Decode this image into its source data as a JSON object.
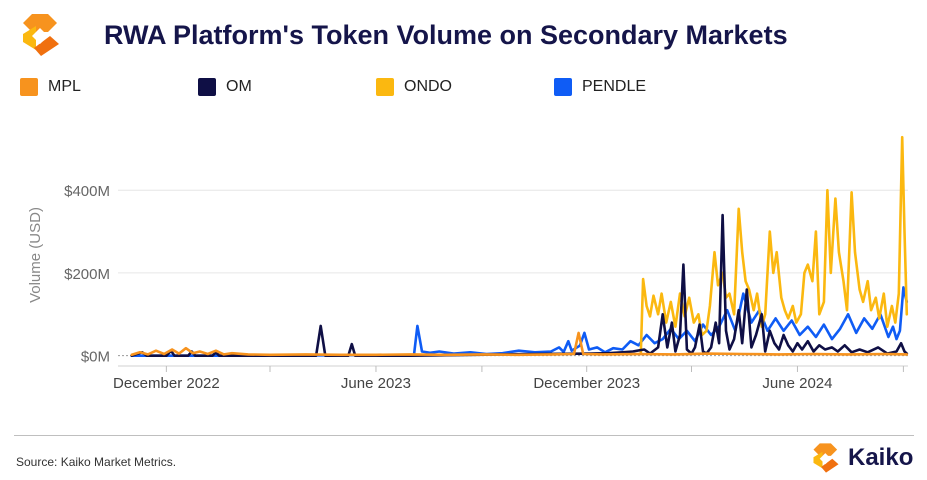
{
  "title": "RWA Platform's Token Volume on Secondary Markets",
  "source": "Source: Kaiko Market Metrics.",
  "brand": "Kaiko",
  "legend": [
    {
      "name": "MPL",
      "color": "#f7931e"
    },
    {
      "name": "OM",
      "color": "#0f0f45"
    },
    {
      "name": "ONDO",
      "color": "#fbb810"
    },
    {
      "name": "PENDLE",
      "color": "#0f5cf5"
    }
  ],
  "chart_data": {
    "type": "line",
    "ylabel": "Volume (USD)",
    "y_unit": "USD millions",
    "ylim": [
      -25,
      560
    ],
    "y_ticks": [
      0,
      200,
      400
    ],
    "y_tick_labels": [
      "$0M",
      "$200M",
      "$400M"
    ],
    "x_range": [
      "2022-10-20",
      "2024-09-05"
    ],
    "x_ticks": [
      "2022-12-01",
      "2023-06-01",
      "2023-12-01",
      "2024-06-01"
    ],
    "x_tick_labels": [
      "December 2022",
      "June 2023",
      "December 2023",
      "June 2024"
    ],
    "grid": "horizontal",
    "legend_position": "top",
    "series": [
      {
        "name": "PENDLE",
        "color": "#0f5cf5",
        "points": [
          [
            "2022-11-01",
            0
          ],
          [
            "2023-03-01",
            0
          ],
          [
            "2023-06-25",
            2
          ],
          [
            "2023-07-04",
            2
          ],
          [
            "2023-07-07",
            72
          ],
          [
            "2023-07-11",
            10
          ],
          [
            "2023-07-18",
            7
          ],
          [
            "2023-07-26",
            10
          ],
          [
            "2023-08-08",
            5
          ],
          [
            "2023-08-22",
            8
          ],
          [
            "2023-09-05",
            4
          ],
          [
            "2023-09-19",
            6
          ],
          [
            "2023-10-03",
            12
          ],
          [
            "2023-10-17",
            8
          ],
          [
            "2023-10-31",
            10
          ],
          [
            "2023-11-07",
            20
          ],
          [
            "2023-11-11",
            9
          ],
          [
            "2023-11-15",
            35
          ],
          [
            "2023-11-18",
            12
          ],
          [
            "2023-11-25",
            24
          ],
          [
            "2023-11-29",
            55
          ],
          [
            "2023-12-03",
            15
          ],
          [
            "2023-12-10",
            20
          ],
          [
            "2023-12-17",
            8
          ],
          [
            "2023-12-24",
            18
          ],
          [
            "2024-01-01",
            15
          ],
          [
            "2024-01-08",
            35
          ],
          [
            "2024-01-15",
            25
          ],
          [
            "2024-01-22",
            50
          ],
          [
            "2024-01-29",
            30
          ],
          [
            "2024-02-05",
            40
          ],
          [
            "2024-02-12",
            65
          ],
          [
            "2024-02-19",
            40
          ],
          [
            "2024-02-26",
            60
          ],
          [
            "2024-03-04",
            35
          ],
          [
            "2024-03-11",
            75
          ],
          [
            "2024-03-18",
            50
          ],
          [
            "2024-03-25",
            70
          ],
          [
            "2024-04-01",
            110
          ],
          [
            "2024-04-08",
            60
          ],
          [
            "2024-04-15",
            150
          ],
          [
            "2024-04-22",
            80
          ],
          [
            "2024-04-29",
            110
          ],
          [
            "2024-05-06",
            60
          ],
          [
            "2024-05-13",
            90
          ],
          [
            "2024-05-20",
            60
          ],
          [
            "2024-05-27",
            85
          ],
          [
            "2024-06-03",
            50
          ],
          [
            "2024-06-10",
            70
          ],
          [
            "2024-06-17",
            45
          ],
          [
            "2024-06-24",
            75
          ],
          [
            "2024-07-01",
            40
          ],
          [
            "2024-07-08",
            65
          ],
          [
            "2024-07-15",
            100
          ],
          [
            "2024-07-22",
            55
          ],
          [
            "2024-07-29",
            90
          ],
          [
            "2024-08-05",
            65
          ],
          [
            "2024-08-12",
            100
          ],
          [
            "2024-08-19",
            45
          ],
          [
            "2024-08-23",
            70
          ],
          [
            "2024-08-26",
            40
          ],
          [
            "2024-08-29",
            60
          ],
          [
            "2024-09-01",
            165
          ],
          [
            "2024-09-04",
            130
          ]
        ]
      },
      {
        "name": "ONDO",
        "color": "#fbb810",
        "points": [
          [
            "2024-01-17",
            5
          ],
          [
            "2024-01-19",
            185
          ],
          [
            "2024-01-22",
            120
          ],
          [
            "2024-01-25",
            95
          ],
          [
            "2024-01-28",
            145
          ],
          [
            "2024-02-01",
            100
          ],
          [
            "2024-02-04",
            150
          ],
          [
            "2024-02-08",
            80
          ],
          [
            "2024-02-12",
            130
          ],
          [
            "2024-02-16",
            70
          ],
          [
            "2024-02-20",
            150
          ],
          [
            "2024-02-24",
            95
          ],
          [
            "2024-02-28",
            140
          ],
          [
            "2024-03-03",
            80
          ],
          [
            "2024-03-07",
            100
          ],
          [
            "2024-03-10",
            50
          ],
          [
            "2024-03-14",
            60
          ],
          [
            "2024-03-17",
            120
          ],
          [
            "2024-03-21",
            250
          ],
          [
            "2024-03-24",
            170
          ],
          [
            "2024-03-28",
            200
          ],
          [
            "2024-03-31",
            140
          ],
          [
            "2024-04-03",
            150
          ],
          [
            "2024-04-07",
            100
          ],
          [
            "2024-04-11",
            355
          ],
          [
            "2024-04-14",
            250
          ],
          [
            "2024-04-17",
            180
          ],
          [
            "2024-04-20",
            160
          ],
          [
            "2024-04-24",
            110
          ],
          [
            "2024-04-27",
            150
          ],
          [
            "2024-05-01",
            70
          ],
          [
            "2024-05-04",
            100
          ],
          [
            "2024-05-08",
            300
          ],
          [
            "2024-05-11",
            200
          ],
          [
            "2024-05-14",
            250
          ],
          [
            "2024-05-18",
            140
          ],
          [
            "2024-05-21",
            110
          ],
          [
            "2024-05-24",
            90
          ],
          [
            "2024-05-28",
            120
          ],
          [
            "2024-05-31",
            80
          ],
          [
            "2024-06-04",
            100
          ],
          [
            "2024-06-07",
            200
          ],
          [
            "2024-06-10",
            220
          ],
          [
            "2024-06-14",
            180
          ],
          [
            "2024-06-17",
            300
          ],
          [
            "2024-06-20",
            100
          ],
          [
            "2024-06-24",
            130
          ],
          [
            "2024-06-27",
            400
          ],
          [
            "2024-06-30",
            200
          ],
          [
            "2024-07-04",
            380
          ],
          [
            "2024-07-07",
            250
          ],
          [
            "2024-07-11",
            180
          ],
          [
            "2024-07-14",
            110
          ],
          [
            "2024-07-18",
            395
          ],
          [
            "2024-07-21",
            250
          ],
          [
            "2024-07-25",
            160
          ],
          [
            "2024-07-28",
            130
          ],
          [
            "2024-08-01",
            180
          ],
          [
            "2024-08-04",
            110
          ],
          [
            "2024-08-08",
            140
          ],
          [
            "2024-08-11",
            90
          ],
          [
            "2024-08-15",
            150
          ],
          [
            "2024-08-18",
            70
          ],
          [
            "2024-08-22",
            120
          ],
          [
            "2024-08-25",
            80
          ],
          [
            "2024-08-28",
            150
          ],
          [
            "2024-08-31",
            528
          ],
          [
            "2024-09-02",
            300
          ],
          [
            "2024-09-04",
            100
          ]
        ]
      },
      {
        "name": "OM",
        "color": "#0f0f45",
        "points": [
          [
            "2022-11-01",
            0
          ],
          [
            "2022-11-10",
            8
          ],
          [
            "2022-11-14",
            0
          ],
          [
            "2022-12-01",
            0
          ],
          [
            "2022-12-05",
            12
          ],
          [
            "2022-12-08",
            0
          ],
          [
            "2022-12-20",
            0
          ],
          [
            "2022-12-23",
            10
          ],
          [
            "2022-12-26",
            0
          ],
          [
            "2023-01-10",
            0
          ],
          [
            "2023-01-13",
            8
          ],
          [
            "2023-01-16",
            0
          ],
          [
            "2023-04-10",
            0
          ],
          [
            "2023-04-14",
            72
          ],
          [
            "2023-04-18",
            0
          ],
          [
            "2023-05-08",
            0
          ],
          [
            "2023-05-11",
            28
          ],
          [
            "2023-05-14",
            0
          ],
          [
            "2023-07-01",
            0
          ],
          [
            "2023-09-20",
            3
          ],
          [
            "2023-12-05",
            5
          ],
          [
            "2023-12-20",
            6
          ],
          [
            "2024-01-01",
            8
          ],
          [
            "2024-01-10",
            10
          ],
          [
            "2024-01-20",
            15
          ],
          [
            "2024-01-25",
            5
          ],
          [
            "2024-02-01",
            20
          ],
          [
            "2024-02-05",
            100
          ],
          [
            "2024-02-09",
            20
          ],
          [
            "2024-02-13",
            80
          ],
          [
            "2024-02-16",
            10
          ],
          [
            "2024-02-20",
            50
          ],
          [
            "2024-02-23",
            220
          ],
          [
            "2024-02-26",
            15
          ],
          [
            "2024-03-01",
            5
          ],
          [
            "2024-03-04",
            20
          ],
          [
            "2024-03-08",
            75
          ],
          [
            "2024-03-11",
            10
          ],
          [
            "2024-03-14",
            5
          ],
          [
            "2024-03-18",
            20
          ],
          [
            "2024-03-22",
            80
          ],
          [
            "2024-03-25",
            30
          ],
          [
            "2024-03-28",
            340
          ],
          [
            "2024-03-31",
            60
          ],
          [
            "2024-04-03",
            15
          ],
          [
            "2024-04-07",
            40
          ],
          [
            "2024-04-11",
            110
          ],
          [
            "2024-04-14",
            30
          ],
          [
            "2024-04-18",
            160
          ],
          [
            "2024-04-22",
            20
          ],
          [
            "2024-04-26",
            50
          ],
          [
            "2024-05-01",
            100
          ],
          [
            "2024-05-04",
            10
          ],
          [
            "2024-05-08",
            60
          ],
          [
            "2024-05-12",
            30
          ],
          [
            "2024-05-16",
            15
          ],
          [
            "2024-05-20",
            50
          ],
          [
            "2024-05-24",
            25
          ],
          [
            "2024-05-28",
            10
          ],
          [
            "2024-06-01",
            30
          ],
          [
            "2024-06-05",
            15
          ],
          [
            "2024-06-10",
            35
          ],
          [
            "2024-06-15",
            10
          ],
          [
            "2024-06-20",
            25
          ],
          [
            "2024-06-25",
            15
          ],
          [
            "2024-07-01",
            20
          ],
          [
            "2024-07-06",
            10
          ],
          [
            "2024-07-12",
            25
          ],
          [
            "2024-07-18",
            8
          ],
          [
            "2024-07-25",
            15
          ],
          [
            "2024-08-01",
            8
          ],
          [
            "2024-08-10",
            20
          ],
          [
            "2024-08-18",
            5
          ],
          [
            "2024-08-26",
            10
          ],
          [
            "2024-08-30",
            30
          ],
          [
            "2024-09-02",
            10
          ],
          [
            "2024-09-04",
            5
          ]
        ]
      },
      {
        "name": "MPL",
        "color": "#f7931e",
        "points": [
          [
            "2022-11-01",
            2
          ],
          [
            "2022-11-08",
            8
          ],
          [
            "2022-11-15",
            3
          ],
          [
            "2022-11-22",
            12
          ],
          [
            "2022-11-29",
            4
          ],
          [
            "2022-12-06",
            15
          ],
          [
            "2022-12-12",
            5
          ],
          [
            "2022-12-18",
            18
          ],
          [
            "2022-12-24",
            6
          ],
          [
            "2022-12-30",
            10
          ],
          [
            "2023-01-06",
            4
          ],
          [
            "2023-01-13",
            12
          ],
          [
            "2023-01-20",
            3
          ],
          [
            "2023-01-27",
            6
          ],
          [
            "2023-02-10",
            3
          ],
          [
            "2023-03-01",
            2
          ],
          [
            "2023-04-01",
            3
          ],
          [
            "2023-05-01",
            2
          ],
          [
            "2023-06-01",
            2
          ],
          [
            "2023-07-01",
            3
          ],
          [
            "2023-08-01",
            2
          ],
          [
            "2023-09-01",
            3
          ],
          [
            "2023-10-01",
            2
          ],
          [
            "2023-11-01",
            3
          ],
          [
            "2023-11-20",
            4
          ],
          [
            "2023-11-24",
            55
          ],
          [
            "2023-11-28",
            4
          ],
          [
            "2023-12-15",
            3
          ],
          [
            "2024-01-15",
            4
          ],
          [
            "2024-02-15",
            3
          ],
          [
            "2024-03-15",
            5
          ],
          [
            "2024-04-15",
            4
          ],
          [
            "2024-05-15",
            3
          ],
          [
            "2024-06-15",
            4
          ],
          [
            "2024-07-15",
            3
          ],
          [
            "2024-08-15",
            4
          ],
          [
            "2024-09-04",
            3
          ]
        ]
      }
    ]
  }
}
